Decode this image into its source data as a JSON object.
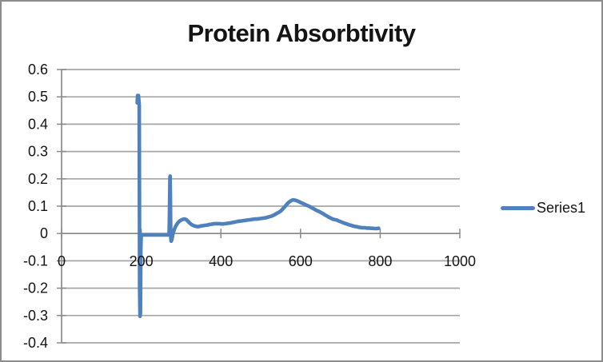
{
  "chart_data": {
    "type": "line",
    "title": "Protein Absorbtivity",
    "xlabel": "",
    "ylabel": "",
    "xlim": [
      0,
      1000
    ],
    "ylim": [
      -0.4,
      0.6
    ],
    "xticks": [
      0,
      200,
      400,
      600,
      800,
      1000
    ],
    "xtick_labels": [
      "0",
      "200",
      "400",
      "600",
      "800",
      "1000"
    ],
    "yticks": [
      0.6,
      0.5,
      0.4,
      0.3,
      0.2,
      0.1,
      0,
      -0.1,
      -0.2,
      -0.3,
      -0.4
    ],
    "ytick_labels": [
      "0.6",
      "0.5",
      "0.4",
      "0.3",
      "0.2",
      "0.1",
      "0",
      "-0.1",
      "-0.2",
      "-0.3",
      "-0.4"
    ],
    "grid": true,
    "legend_position": "right",
    "colors": {
      "series": "#4F81BD",
      "gridline": "#A6A6A6",
      "axis": "#8A8A8A",
      "text": "#141414",
      "border": "#8C8C8C",
      "background": "#FFFFFF"
    },
    "series": [
      {
        "name": "Series1",
        "color": "#4F81BD",
        "points": [
          [
            190,
            0.478
          ],
          [
            191,
            0.505
          ],
          [
            193,
            0.505
          ],
          [
            195,
            0.47
          ],
          [
            196,
            -0.2
          ],
          [
            197,
            -0.303
          ],
          [
            198,
            -0.29
          ],
          [
            199,
            -0.05
          ],
          [
            200,
            -0.005
          ],
          [
            210,
            -0.005
          ],
          [
            220,
            -0.005
          ],
          [
            230,
            -0.005
          ],
          [
            240,
            -0.005
          ],
          [
            250,
            -0.005
          ],
          [
            260,
            -0.005
          ],
          [
            268,
            -0.005
          ],
          [
            270,
            -0.003
          ],
          [
            271,
            0.08
          ],
          [
            272,
            0.2
          ],
          [
            272.5,
            0.21
          ],
          [
            273,
            0.15
          ],
          [
            274,
            -0.01
          ],
          [
            275,
            -0.028
          ],
          [
            277,
            -0.022
          ],
          [
            279,
            -0.005
          ],
          [
            281,
            0.006
          ],
          [
            284,
            0.018
          ],
          [
            287,
            0.028
          ],
          [
            291,
            0.037
          ],
          [
            295,
            0.044
          ],
          [
            300,
            0.049
          ],
          [
            305,
            0.052
          ],
          [
            309,
            0.053
          ],
          [
            313,
            0.051
          ],
          [
            317,
            0.045
          ],
          [
            321,
            0.039
          ],
          [
            326,
            0.033
          ],
          [
            331,
            0.029
          ],
          [
            336,
            0.027
          ],
          [
            341,
            0.025
          ],
          [
            346,
            0.026
          ],
          [
            351,
            0.028
          ],
          [
            356,
            0.029
          ],
          [
            361,
            0.03
          ],
          [
            366,
            0.031
          ],
          [
            371,
            0.033
          ],
          [
            376,
            0.034
          ],
          [
            381,
            0.035
          ],
          [
            386,
            0.036
          ],
          [
            391,
            0.036
          ],
          [
            396,
            0.036
          ],
          [
            401,
            0.035
          ],
          [
            406,
            0.035
          ],
          [
            411,
            0.036
          ],
          [
            416,
            0.037
          ],
          [
            421,
            0.038
          ],
          [
            426,
            0.039
          ],
          [
            431,
            0.041
          ],
          [
            436,
            0.042
          ],
          [
            441,
            0.044
          ],
          [
            446,
            0.045
          ],
          [
            451,
            0.046
          ],
          [
            456,
            0.047
          ],
          [
            461,
            0.048
          ],
          [
            466,
            0.049
          ],
          [
            471,
            0.05
          ],
          [
            476,
            0.051
          ],
          [
            481,
            0.052
          ],
          [
            486,
            0.053
          ],
          [
            491,
            0.053
          ],
          [
            496,
            0.054
          ],
          [
            501,
            0.055
          ],
          [
            506,
            0.056
          ],
          [
            511,
            0.057
          ],
          [
            516,
            0.059
          ],
          [
            521,
            0.061
          ],
          [
            526,
            0.063
          ],
          [
            531,
            0.066
          ],
          [
            536,
            0.07
          ],
          [
            541,
            0.074
          ],
          [
            546,
            0.078
          ],
          [
            551,
            0.083
          ],
          [
            556,
            0.091
          ],
          [
            561,
            0.099
          ],
          [
            566,
            0.108
          ],
          [
            571,
            0.115
          ],
          [
            576,
            0.12
          ],
          [
            581,
            0.123
          ],
          [
            586,
            0.122
          ],
          [
            591,
            0.12
          ],
          [
            596,
            0.117
          ],
          [
            601,
            0.113
          ],
          [
            606,
            0.11
          ],
          [
            611,
            0.106
          ],
          [
            616,
            0.103
          ],
          [
            621,
            0.1
          ],
          [
            626,
            0.096
          ],
          [
            631,
            0.092
          ],
          [
            636,
            0.088
          ],
          [
            641,
            0.084
          ],
          [
            646,
            0.081
          ],
          [
            651,
            0.077
          ],
          [
            656,
            0.073
          ],
          [
            661,
            0.068
          ],
          [
            666,
            0.064
          ],
          [
            671,
            0.06
          ],
          [
            676,
            0.056
          ],
          [
            681,
            0.053
          ],
          [
            686,
            0.051
          ],
          [
            691,
            0.049
          ],
          [
            696,
            0.046
          ],
          [
            701,
            0.043
          ],
          [
            706,
            0.04
          ],
          [
            711,
            0.037
          ],
          [
            716,
            0.035
          ],
          [
            721,
            0.032
          ],
          [
            726,
            0.03
          ],
          [
            731,
            0.028
          ],
          [
            736,
            0.026
          ],
          [
            741,
            0.025
          ],
          [
            746,
            0.023
          ],
          [
            751,
            0.022
          ],
          [
            756,
            0.021
          ],
          [
            761,
            0.021
          ],
          [
            766,
            0.02
          ],
          [
            771,
            0.02
          ],
          [
            776,
            0.019
          ],
          [
            781,
            0.019
          ],
          [
            786,
            0.018
          ],
          [
            791,
            0.018
          ],
          [
            796,
            0.019
          ]
        ]
      }
    ]
  }
}
